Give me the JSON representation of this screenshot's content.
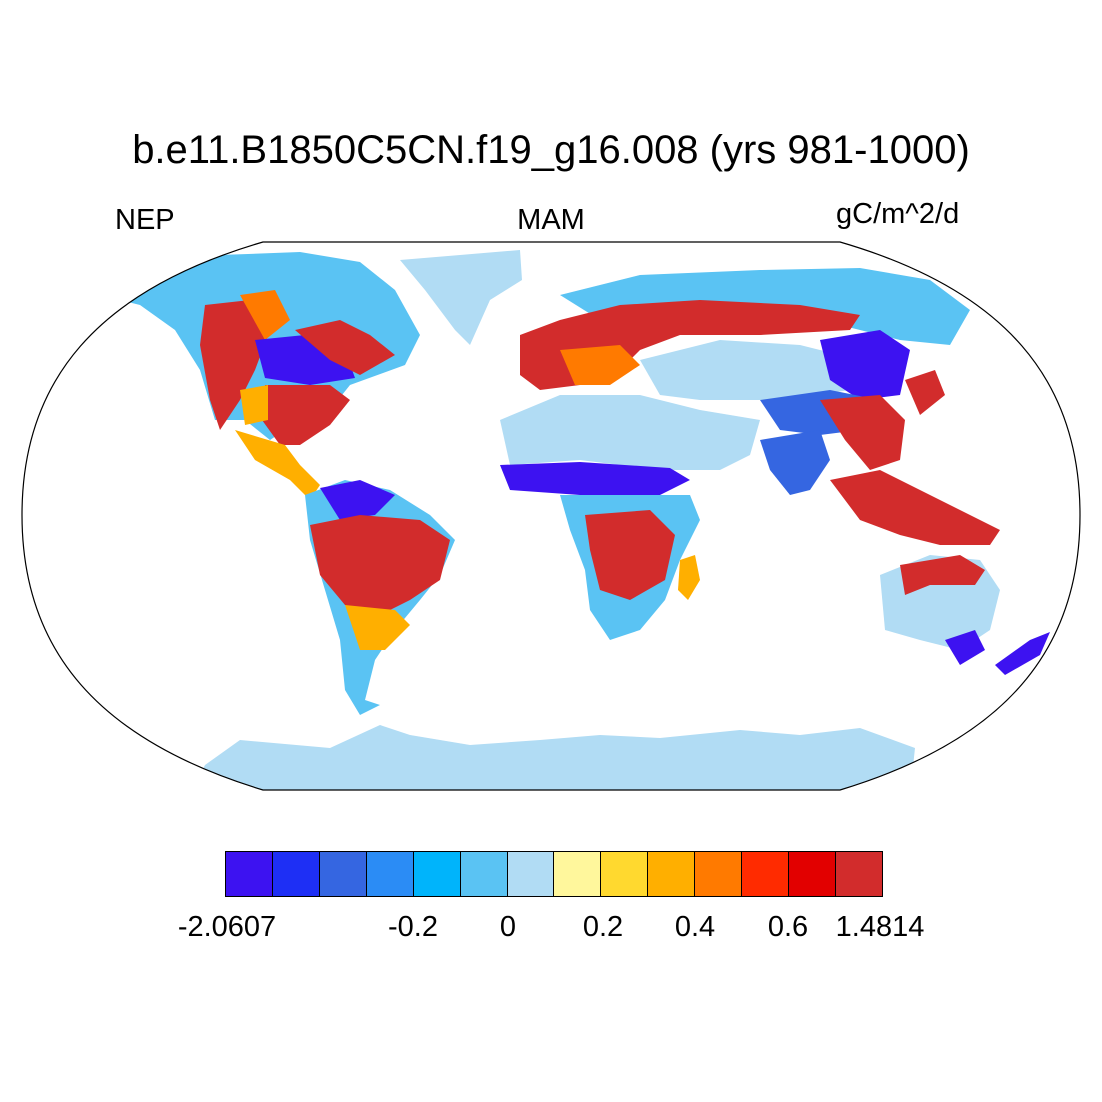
{
  "title": "b.e11.B1850C5CN.f19_g16.008 (yrs 981-1000)",
  "left_string": "NEP",
  "center_string": "MAM",
  "right_string": "gC/m^2/d",
  "colorbar": {
    "colors": [
      "#3d12f1",
      "#1e2ff5",
      "#3566e1",
      "#2b8cf5",
      "#00b4fb",
      "#5ac3f3",
      "#b1dcf4",
      "#fff79c",
      "#ffd92f",
      "#ffaf00",
      "#ff7a00",
      "#ff2b00",
      "#e20000",
      "#d22c2c"
    ],
    "tick_labels": [
      "-2.0607",
      "-0.2",
      "0",
      "0.2",
      "0.4",
      "0.6",
      "1.4814"
    ]
  },
  "map": {
    "projection": "Robinson",
    "ocean_color": "#ffffff",
    "coastline_color": "#000000"
  }
}
